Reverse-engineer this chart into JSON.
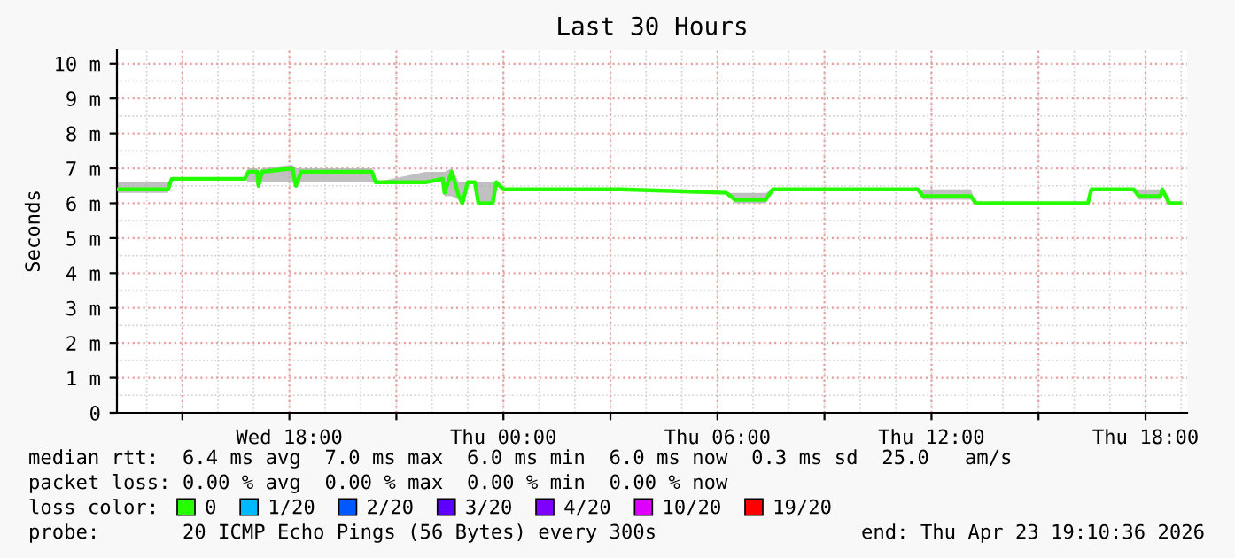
{
  "chart_data": {
    "type": "line",
    "title": "Last 30 Hours",
    "ylabel": "Seconds",
    "x": [
      "2026-04-22T13:10",
      "2026-04-22T14:36",
      "2026-04-22T14:42",
      "2026-04-22T16:45",
      "2026-04-22T16:51",
      "2026-04-22T17:06",
      "2026-04-22T17:08",
      "2026-04-22T17:14",
      "2026-04-22T18:05",
      "2026-04-22T18:11",
      "2026-04-22T18:20",
      "2026-04-22T20:19",
      "2026-04-22T20:25",
      "2026-04-22T21:49",
      "2026-04-22T22:18",
      "2026-04-22T22:21",
      "2026-04-22T22:33",
      "2026-04-22T22:45",
      "2026-04-22T22:51",
      "2026-04-22T23:00",
      "2026-04-22T23:12",
      "2026-04-22T23:18",
      "2026-04-22T23:42",
      "2026-04-22T23:48",
      "2026-04-23T00:00",
      "2026-04-23T03:17",
      "2026-04-23T06:15",
      "2026-04-23T06:30",
      "2026-04-23T07:21",
      "2026-04-23T07:33",
      "2026-04-23T11:37",
      "2026-04-23T11:46",
      "2026-04-23T13:06",
      "2026-04-23T13:15",
      "2026-04-23T16:23",
      "2026-04-23T16:29",
      "2026-04-23T17:40",
      "2026-04-23T17:49",
      "2026-04-23T18:25",
      "2026-04-23T18:28",
      "2026-04-23T18:40",
      "2026-04-23T18:58"
    ],
    "series": [
      {
        "name": "0",
        "color": "#26ff00",
        "values": [
          6.4,
          6.4,
          6.7,
          6.7,
          6.9,
          6.9,
          6.5,
          6.9,
          7.0,
          6.5,
          6.9,
          6.9,
          6.6,
          6.6,
          6.7,
          6.3,
          6.9,
          6.2,
          6.0,
          6.6,
          6.6,
          6.0,
          6.0,
          6.6,
          6.4,
          6.4,
          6.3,
          6.1,
          6.1,
          6.4,
          6.4,
          6.2,
          6.2,
          6.0,
          6.0,
          6.4,
          6.4,
          6.2,
          6.2,
          6.4,
          6.0,
          6.0
        ],
        "lower": [
          6.3,
          6.3,
          6.7,
          6.7,
          6.6,
          6.6,
          6.5,
          6.6,
          6.6,
          6.5,
          6.6,
          6.6,
          6.6,
          6.6,
          6.6,
          6.2,
          6.2,
          6.1,
          6.0,
          6.6,
          6.6,
          6.0,
          6.0,
          6.6,
          6.4,
          6.4,
          6.3,
          6.0,
          6.0,
          6.4,
          6.4,
          6.1,
          6.1,
          6.0,
          6.0,
          6.4,
          6.4,
          6.1,
          6.1,
          6.4,
          6.0,
          6.0
        ],
        "upper": [
          6.6,
          6.6,
          6.7,
          6.7,
          7.0,
          7.0,
          6.9,
          7.0,
          7.1,
          7.0,
          7.0,
          7.0,
          6.6,
          6.9,
          6.9,
          6.9,
          7.0,
          6.6,
          6.6,
          6.6,
          6.6,
          6.6,
          6.6,
          6.6,
          6.4,
          6.4,
          6.3,
          6.3,
          6.3,
          6.4,
          6.4,
          6.4,
          6.4,
          6.0,
          6.0,
          6.4,
          6.4,
          6.4,
          6.4,
          6.4,
          6.0,
          6.0
        ]
      },
      {
        "name": "1/20",
        "color": "#00b8ff",
        "values": [
          null,
          null,
          null,
          null,
          null,
          null,
          null,
          null,
          null,
          null,
          null,
          null,
          null,
          null,
          null,
          null,
          null,
          null,
          null,
          null,
          null,
          null,
          null,
          null,
          null,
          null,
          null,
          null,
          null,
          null,
          null,
          null,
          null,
          null,
          null,
          null,
          null,
          null,
          null,
          null,
          null,
          null
        ]
      },
      {
        "name": "2/20",
        "color": "#0059ff",
        "values": [
          null,
          null,
          null,
          null,
          null,
          null,
          null,
          null,
          null,
          null,
          null,
          null,
          null,
          null,
          null,
          null,
          null,
          null,
          null,
          null,
          null,
          null,
          null,
          null,
          null,
          null,
          null,
          null,
          null,
          null,
          null,
          null,
          null,
          null,
          null,
          null,
          null,
          null,
          null,
          null,
          null,
          null
        ]
      },
      {
        "name": "3/20",
        "color": "#5e00ff",
        "values": [
          null,
          null,
          null,
          null,
          null,
          null,
          null,
          null,
          null,
          null,
          null,
          null,
          null,
          null,
          null,
          null,
          null,
          null,
          null,
          null,
          null,
          null,
          null,
          null,
          null,
          null,
          null,
          null,
          null,
          null,
          null,
          null,
          null,
          null,
          null,
          null,
          null,
          null,
          null,
          null,
          null,
          null
        ]
      },
      {
        "name": "4/20",
        "color": "#7e00ff",
        "values": [
          null,
          null,
          null,
          null,
          null,
          null,
          null,
          null,
          null,
          null,
          null,
          null,
          null,
          null,
          null,
          null,
          null,
          null,
          null,
          null,
          null,
          null,
          null,
          null,
          null,
          null,
          null,
          null,
          null,
          null,
          null,
          null,
          null,
          null,
          null,
          null,
          null,
          null,
          null,
          null,
          null,
          null
        ]
      },
      {
        "name": "10/20",
        "color": "#dd00ff",
        "values": [
          null,
          null,
          null,
          null,
          null,
          null,
          null,
          null,
          null,
          null,
          null,
          null,
          null,
          null,
          null,
          null,
          null,
          null,
          null,
          null,
          null,
          null,
          null,
          null,
          null,
          null,
          null,
          null,
          null,
          null,
          null,
          null,
          null,
          null,
          null,
          null,
          null,
          null,
          null,
          null,
          null,
          null
        ]
      },
      {
        "name": "19/20",
        "color": "#ff0000",
        "values": [
          null,
          null,
          null,
          null,
          null,
          null,
          null,
          null,
          null,
          null,
          null,
          null,
          null,
          null,
          null,
          null,
          null,
          null,
          null,
          null,
          null,
          null,
          null,
          null,
          null,
          null,
          null,
          null,
          null,
          null,
          null,
          null,
          null,
          null,
          null,
          null,
          null,
          null,
          null,
          null,
          null,
          null
        ]
      }
    ],
    "legend_title": "loss color:",
    "legend": "bottom",
    "xlim": [
      "2026-04-22T13:10",
      "2026-04-23T19:10"
    ],
    "xticks": [
      {
        "value": "2026-04-22T15:00",
        "label": null
      },
      {
        "value": "2026-04-22T18:00",
        "label": "Wed 18:00"
      },
      {
        "value": "2026-04-22T21:00",
        "label": null
      },
      {
        "value": "2026-04-23T00:00",
        "label": "Thu 00:00"
      },
      {
        "value": "2026-04-23T03:00",
        "label": null
      },
      {
        "value": "2026-04-23T06:00",
        "label": "Thu 06:00"
      },
      {
        "value": "2026-04-23T09:00",
        "label": null
      },
      {
        "value": "2026-04-23T12:00",
        "label": "Thu 12:00"
      },
      {
        "value": "2026-04-23T15:00",
        "label": null
      },
      {
        "value": "2026-04-23T18:00",
        "label": "Thu 18:00"
      }
    ],
    "ylim": [
      0,
      10.4
    ],
    "yticks": [
      0,
      {
        "value": 1,
        "label": "1 m"
      },
      {
        "value": 2,
        "label": "2 m"
      },
      {
        "value": 3,
        "label": "3 m"
      },
      {
        "value": 4,
        "label": "4 m"
      },
      {
        "value": 5,
        "label": "5 m"
      },
      {
        "value": 6,
        "label": "6 m"
      },
      {
        "value": 7,
        "label": "7 m"
      },
      {
        "value": 8,
        "label": "8 m"
      },
      {
        "value": 9,
        "label": "9 m"
      },
      {
        "value": 10,
        "label": "10 m"
      }
    ],
    "grid": true,
    "line_style": "solid",
    "marker": "none",
    "annotations": [
      "median rtt:  6.4 ms avg  7.0 ms max  6.0 ms min  6.0 ms now  0.3 ms sd  25.0   am/s",
      "packet loss: 0.00 % avg  0.00 % max  0.00 % min  0.00 % now",
      "probe:       20 ICMP Echo Pings (56 Bytes) every 300s",
      "end: Thu Apr 23 19:10:36 2026"
    ]
  }
}
